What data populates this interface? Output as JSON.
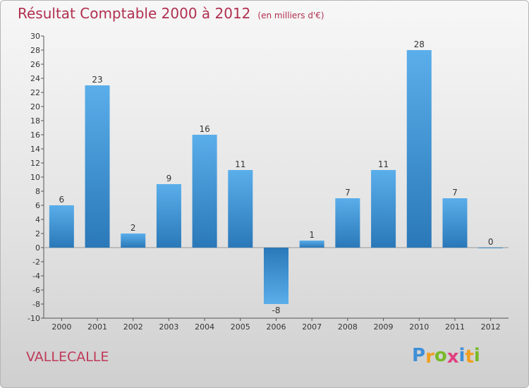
{
  "chart_data": {
    "type": "bar",
    "title": "Résultat Comptable 2000 à 2012",
    "unit_note": "(en milliers d'€)",
    "categories": [
      "2000",
      "2001",
      "2002",
      "2003",
      "2004",
      "2005",
      "2006",
      "2007",
      "2008",
      "2009",
      "2010",
      "2011",
      "2012"
    ],
    "values": [
      6,
      23,
      2,
      9,
      16,
      11,
      -8,
      1,
      7,
      11,
      28,
      7,
      0
    ],
    "ylim": [
      -10,
      30
    ],
    "ytick_step": 2,
    "xlabel": "",
    "ylabel": "",
    "grid": false,
    "colors": {
      "bar_top": "#5aaeea",
      "bar_bottom": "#2a78b8",
      "axis": "#555555",
      "title": "#b0304f"
    }
  },
  "commune": "VALLECALLE",
  "logo": {
    "letters": [
      "P",
      "r",
      "o",
      "x",
      "i",
      "t",
      "i"
    ],
    "colors": [
      "#3f8fd8",
      "#f0a020",
      "#78b928",
      "#e04080",
      "#3f8fd8",
      "#f0a020",
      "#78b928"
    ]
  }
}
